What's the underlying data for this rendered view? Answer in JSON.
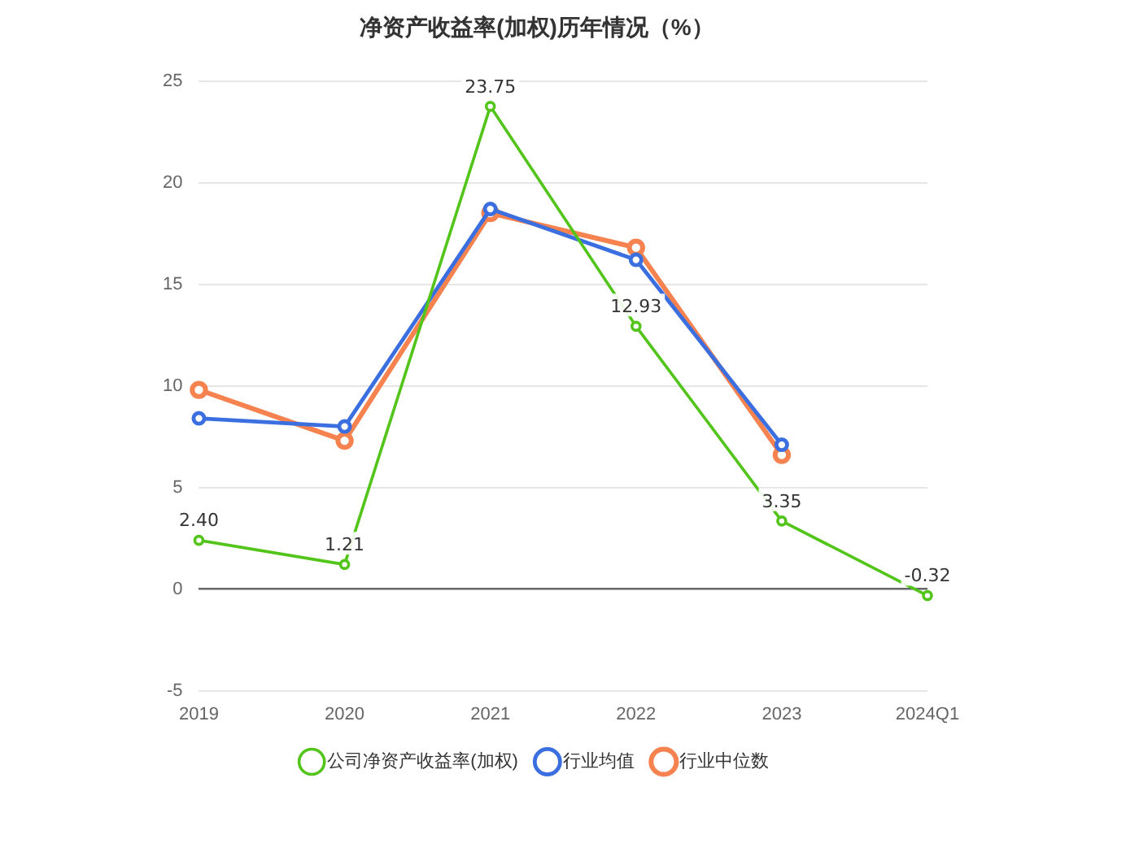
{
  "chart_data": {
    "type": "line",
    "title": "净资产收益率(加权)历年情况（%）",
    "categories": [
      "2019",
      "2020",
      "2021",
      "2022",
      "2023",
      "2024Q1"
    ],
    "series": [
      {
        "name": "公司净资产收益率(加权)",
        "color": "#52c41a",
        "values": [
          2.4,
          1.21,
          23.75,
          12.93,
          3.35,
          -0.32
        ],
        "value_labels": [
          "2.40",
          "1.21",
          "23.75",
          "12.93",
          "3.35",
          "-0.32"
        ]
      },
      {
        "name": "行业均值",
        "color": "#3b6fe0",
        "values": [
          8.4,
          8.0,
          18.7,
          16.2,
          7.1,
          null
        ]
      },
      {
        "name": "行业中位数",
        "color": "#f5824f",
        "values": [
          9.8,
          7.3,
          18.5,
          16.8,
          6.6,
          null
        ]
      }
    ],
    "ylim": [
      -5,
      25
    ],
    "yticks": [
      -5,
      0,
      5,
      10,
      15,
      20,
      25
    ],
    "grid": "y",
    "legend": "bottom",
    "marker": "circle",
    "line_style": "solid"
  }
}
